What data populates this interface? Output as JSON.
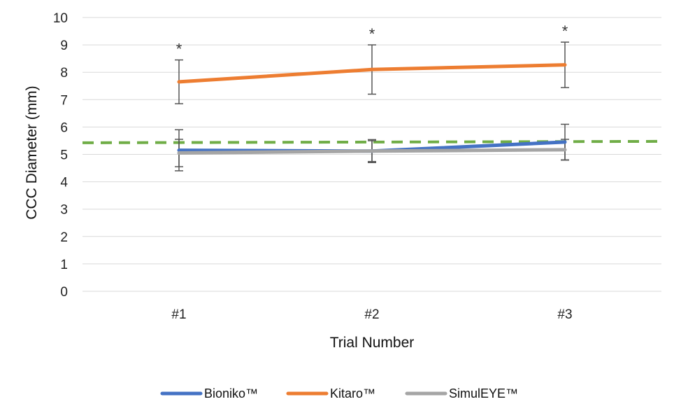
{
  "chart_data": {
    "type": "line",
    "title": "",
    "xlabel": "Trial Number",
    "ylabel": "CCC Diameter (mm)",
    "categories": [
      "#1",
      "#2",
      "#3"
    ],
    "ylim": [
      0,
      10
    ],
    "yticks": [
      "0",
      "1",
      "2",
      "3",
      "4",
      "5",
      "6",
      "7",
      "8",
      "9",
      "10"
    ],
    "grid": true,
    "legend_position": "bottom",
    "series": [
      {
        "name": "Bioniko™",
        "color": "#4472C4",
        "values": [
          5.15,
          5.12,
          5.45
        ],
        "error": [
          0.75,
          0.42,
          0.65
        ]
      },
      {
        "name": "Kitaro™",
        "color": "#ED7D31",
        "values": [
          7.65,
          8.1,
          8.27
        ],
        "error": [
          0.8,
          0.9,
          0.83
        ]
      },
      {
        "name": "SimulEYE™",
        "color": "#A5A5A5",
        "values": [
          5.05,
          5.12,
          5.17
        ],
        "error": [
          0.5,
          0.38,
          0.38
        ]
      }
    ],
    "reference_line": {
      "value": 5.45,
      "color": "#70AD47",
      "style": "dashed"
    },
    "annotations": [
      {
        "category": "#1",
        "text": "*"
      },
      {
        "category": "#2",
        "text": "*"
      },
      {
        "category": "#3",
        "text": "*"
      }
    ]
  }
}
